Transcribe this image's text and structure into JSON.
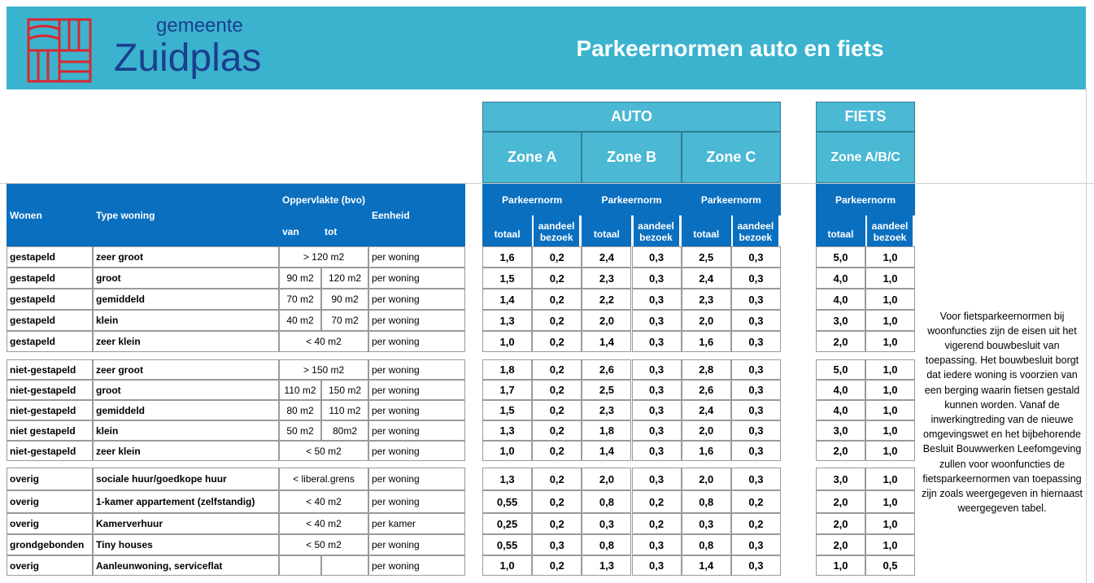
{
  "header": {
    "logo_small": "gemeente",
    "logo_large": "Zuidplas",
    "title": "Parkeernormen auto en fiets"
  },
  "groups": {
    "auto": "AUTO",
    "fiets": "FIETS"
  },
  "zones": [
    "Zone A",
    "Zone B",
    "Zone C",
    "Zone A/B/C"
  ],
  "columns": {
    "wonen": "Wonen",
    "type": "Type woning",
    "oppervlakte": "Oppervlakte (bvo)",
    "van": "van",
    "tot": "tot",
    "eenheid": "Eenheid",
    "parkeernorm": "Parkeernorm",
    "totaal": "totaal",
    "aandeel": "aandeel bezoek"
  },
  "sections": [
    {
      "rows": [
        [
          "gestapeld",
          "zeer groot",
          "> 120 m2",
          null,
          "per woning",
          "1,6",
          "0,2",
          "2,4",
          "0,3",
          "2,5",
          "0,3",
          "5,0",
          "1,0"
        ],
        [
          "gestapeld",
          "groot",
          "90 m2",
          "120 m2",
          "per woning",
          "1,5",
          "0,2",
          "2,3",
          "0,3",
          "2,4",
          "0,3",
          "4,0",
          "1,0"
        ],
        [
          "gestapeld",
          "gemiddeld",
          "70 m2",
          "90 m2",
          "per woning",
          "1,4",
          "0,2",
          "2,2",
          "0,3",
          "2,3",
          "0,3",
          "4,0",
          "1,0"
        ],
        [
          "gestapeld",
          "klein",
          "40 m2",
          "70 m2",
          "per woning",
          "1,3",
          "0,2",
          "2,0",
          "0,3",
          "2,0",
          "0,3",
          "3,0",
          "1,0"
        ],
        [
          "gestapeld",
          "zeer klein",
          "< 40 m2",
          null,
          "per woning",
          "1,0",
          "0,2",
          "1,4",
          "0,3",
          "1,6",
          "0,3",
          "2,0",
          "1,0"
        ]
      ]
    },
    {
      "rows": [
        [
          "niet-gestapeld",
          "zeer groot",
          "> 150 m2",
          null,
          "per woning",
          "1,8",
          "0,2",
          "2,6",
          "0,3",
          "2,8",
          "0,3",
          "5,0",
          "1,0"
        ],
        [
          "niet-gestapeld",
          "groot",
          "110 m2",
          "150 m2",
          "per woning",
          "1,7",
          "0,2",
          "2,5",
          "0,3",
          "2,6",
          "0,3",
          "4,0",
          "1,0"
        ],
        [
          "niet-gestapeld",
          "gemiddeld",
          "80 m2",
          "110 m2",
          "per woning",
          "1,5",
          "0,2",
          "2,3",
          "0,3",
          "2,4",
          "0,3",
          "4,0",
          "1,0"
        ],
        [
          "niet gestapeld",
          "klein",
          "50 m2",
          "80m2",
          "per woning",
          "1,3",
          "0,2",
          "1,8",
          "0,3",
          "2,0",
          "0,3",
          "3,0",
          "1,0"
        ],
        [
          "niet-gestapeld",
          "zeer klein",
          "< 50 m2",
          null,
          "per woning",
          "1,0",
          "0,2",
          "1,4",
          "0,3",
          "1,6",
          "0,3",
          "2,0",
          "1,0"
        ]
      ]
    },
    {
      "rows": [
        [
          "overig",
          "sociale huur/goedkope huur",
          "< liberal.grens",
          null,
          "per woning",
          "1,3",
          "0,2",
          "2,0",
          "0,3",
          "2,0",
          "0,3",
          "3,0",
          "1,0"
        ],
        [
          "overig",
          "1-kamer appartement (zelfstandig)",
          "< 40 m2",
          null,
          "per woning",
          "0,55",
          "0,2",
          "0,8",
          "0,2",
          "0,8",
          "0,2",
          "2,0",
          "1,0"
        ],
        [
          "overig",
          "Kamerverhuur",
          "< 40 m2",
          null,
          "per kamer",
          "0,25",
          "0,2",
          "0,3",
          "0,2",
          "0,3",
          "0,2",
          "2,0",
          "1,0"
        ],
        [
          "grondgebonden",
          "Tiny houses",
          "< 50 m2",
          null,
          "per woning",
          "0,55",
          "0,3",
          "0,8",
          "0,3",
          "0,8",
          "0,3",
          "2,0",
          "1,0"
        ],
        [
          "overig",
          "Aanleunwoning, serviceflat",
          null,
          null,
          "per woning",
          "1,0",
          "0,2",
          "1,3",
          "0,3",
          "1,4",
          "0,3",
          "1,0",
          "0,5"
        ]
      ]
    }
  ],
  "note": "Voor fietsparkeernormen bij woonfuncties zijn de eisen uit het vigerend bouwbesluit van toepassing. Het bouwbesluit borgt dat iedere woning is voorzien van een berging waarin fietsen gestald kunnen worden. Vanaf de inwerkingtreding van de nieuwe omgevingswet en het bijbehorende Besluit Bouwwerken Leefomgeving zullen voor woonfuncties de fietsparkeernormen van toepassing zijn zoals weergegeven in hiernaast weergegeven tabel."
}
